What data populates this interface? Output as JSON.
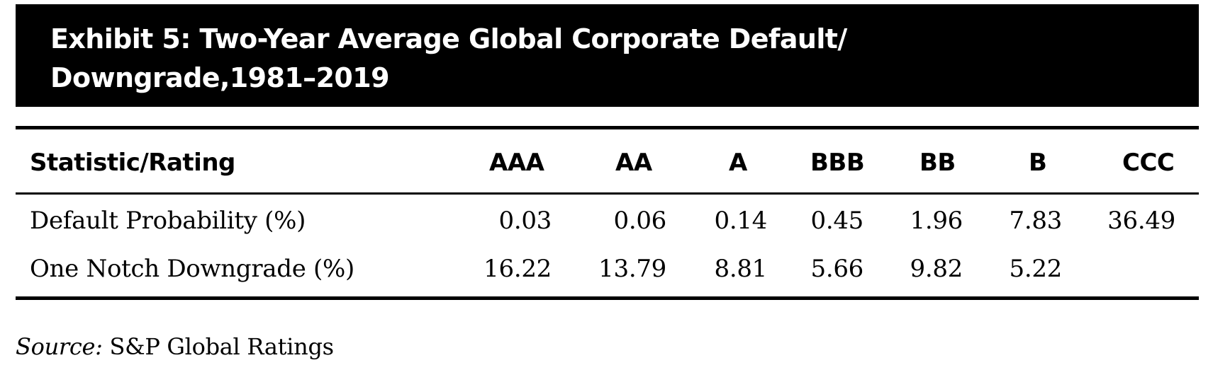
{
  "exhibit": {
    "title_line1": "Exhibit 5: Two-Year Average Global Corporate Default/",
    "title_line2": "Downgrade,1981–2019"
  },
  "table": {
    "columns": [
      "Statistic/Rating",
      "AAA",
      "AA",
      "A",
      "BBB",
      "BB",
      "B",
      "CCC"
    ],
    "rows": [
      {
        "label": "Default Probability (%)",
        "values": [
          "0.03",
          "0.06",
          "0.14",
          "0.45",
          "1.96",
          "7.83",
          "36.49"
        ]
      },
      {
        "label": "One Notch Downgrade (%)",
        "values": [
          "16.22",
          "13.79",
          "8.81",
          "5.66",
          "9.82",
          "5.22",
          ""
        ]
      }
    ]
  },
  "source": {
    "label": "Source:",
    "text": " S&P Global Ratings"
  }
}
